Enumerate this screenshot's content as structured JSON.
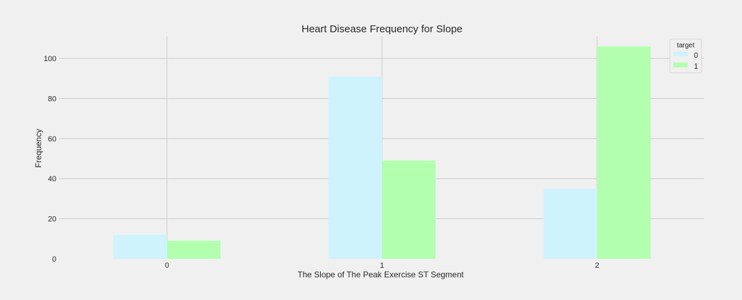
{
  "chart_data": {
    "type": "bar",
    "title": "Heart Disease Frequency for Slope",
    "xlabel": "The Slope of The Peak Exercise ST Segment",
    "ylabel": "Frequency",
    "categories": [
      "0",
      "1",
      "2"
    ],
    "series": [
      {
        "name": "0",
        "values": [
          12,
          91,
          35
        ],
        "color": "#cff3fc"
      },
      {
        "name": "1",
        "values": [
          9,
          49,
          106
        ],
        "color": "#b3ffb0"
      }
    ],
    "ylim": [
      0,
      111
    ],
    "yticks": [
      0,
      20,
      40,
      60,
      80,
      100
    ],
    "grid": true,
    "legend": {
      "title": "target",
      "placement": "top-right"
    }
  }
}
